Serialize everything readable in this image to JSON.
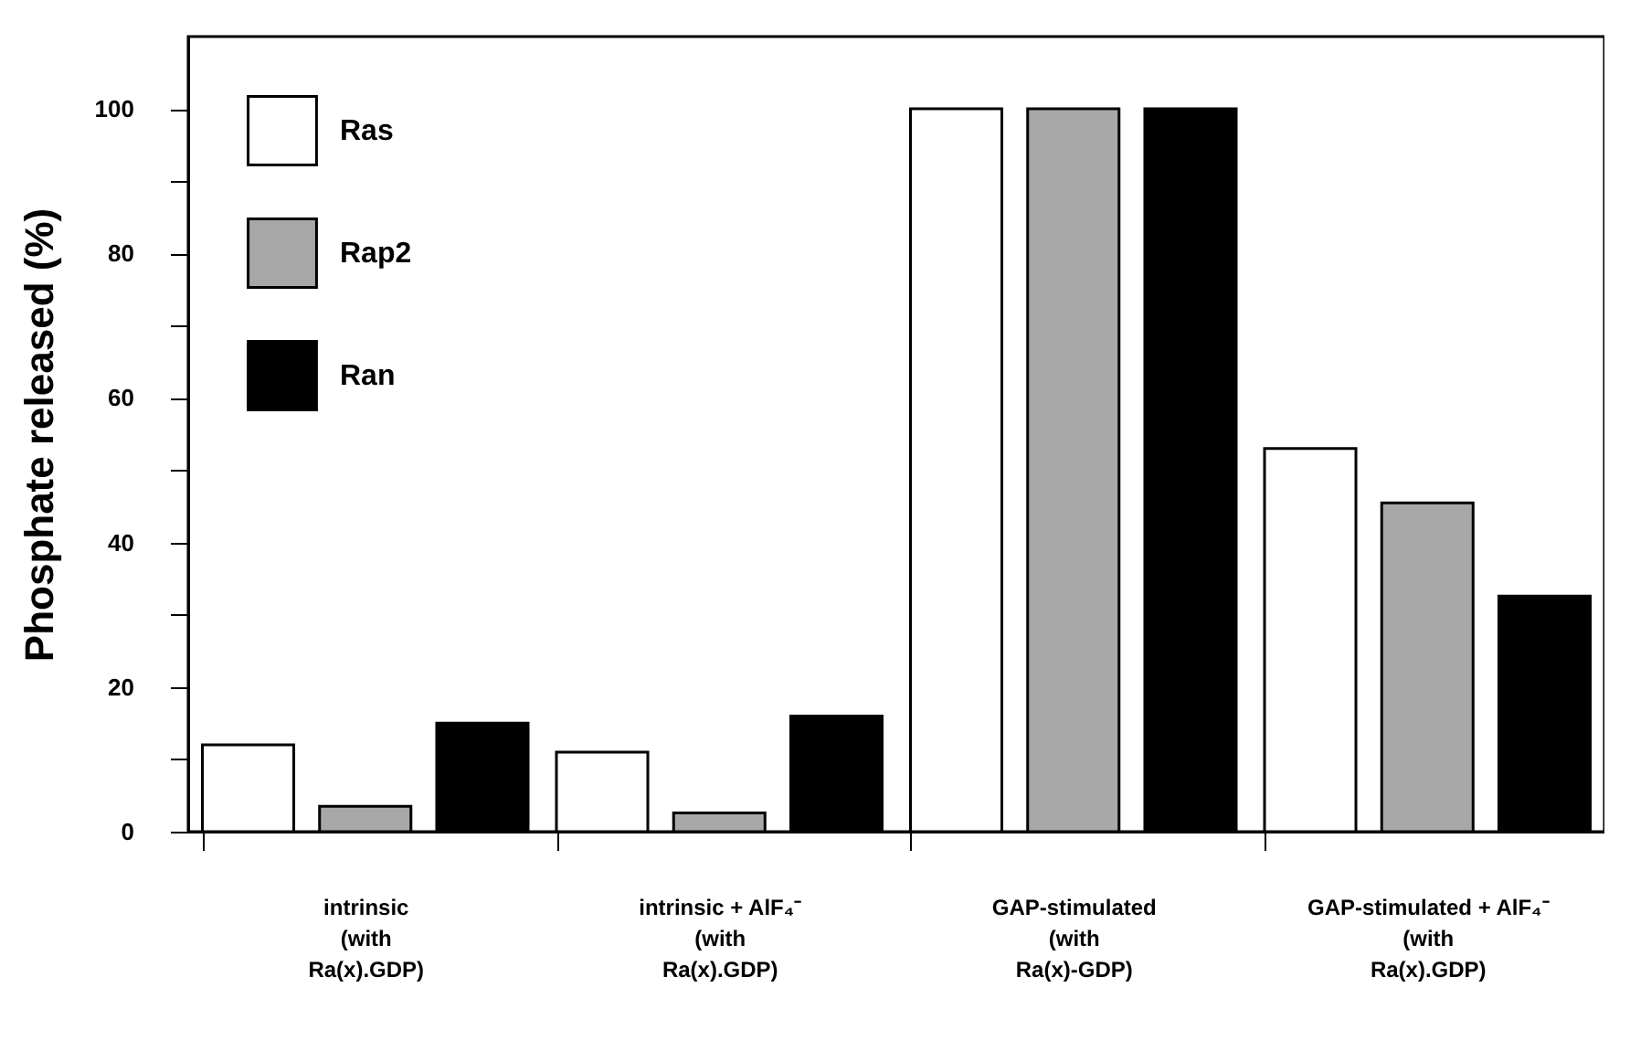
{
  "chart_data": {
    "type": "bar",
    "ylabel": "Phosphate released (%)",
    "categories": [
      "intrinsic\n(with\nRa(x).GDP)",
      "intrinsic  + AlF₄⁻\n(with\nRa(x).GDP)",
      "GAP-stimulated\n(with\nRa(x)-GDP)",
      "GAP-stimulated  + AlF₄⁻\n(with\nRa(x).GDP)"
    ],
    "series": [
      {
        "name": "Ras",
        "color": "#ffffff",
        "values": [
          12,
          11,
          100,
          53
        ]
      },
      {
        "name": "Rap2",
        "color": "#a8a8a8",
        "values": [
          3.5,
          2.6,
          100,
          45.5
        ]
      },
      {
        "name": "Ran",
        "color": "#000000",
        "values": [
          15,
          16,
          100,
          32.6
        ]
      }
    ],
    "ylim": [
      0,
      110
    ],
    "yticks": [
      0,
      {
        "value": 10,
        "label": null
      },
      20,
      {
        "value": 30,
        "label": null
      },
      40,
      {
        "value": 50,
        "label": null
      },
      60,
      {
        "value": 70,
        "label": null
      },
      80,
      {
        "value": 90,
        "label": null
      },
      100
    ],
    "legend": "top left",
    "grid": false
  }
}
